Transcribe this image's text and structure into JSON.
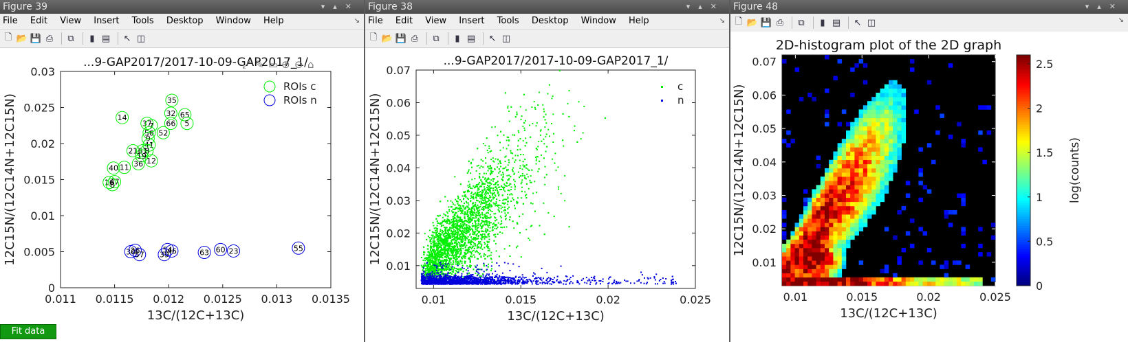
{
  "windows": [
    {
      "title": "Figure 39",
      "menu": [
        "File",
        "Edit",
        "View",
        "Insert",
        "Tools",
        "Desktop",
        "Window",
        "Help"
      ],
      "plot_title": "...9-GAP2017/2017-10-09-GAP2017_1/",
      "fit_button": "Fit data"
    },
    {
      "title": "Figure 38",
      "menu": [
        "File",
        "Edit",
        "View",
        "Insert",
        "Tools",
        "Desktop",
        "Window",
        "Help"
      ],
      "plot_title": "...9-GAP2017/2017-10-09-GAP2017_1/"
    },
    {
      "title": "Figure 48",
      "plot_title": "2D-histogram plot of the 2D graph"
    }
  ],
  "colors": {
    "green": "#00ee00",
    "blue": "#0000dd"
  },
  "chart_data": [
    {
      "type": "scatter",
      "title": "...9-GAP2017/2017-10-09-GAP2017_1/",
      "xlabel": "13C/(12C+13C)",
      "ylabel": "12C15N/(12C14N+12C15N)",
      "xlim": [
        0.011,
        0.0135
      ],
      "ylim": [
        0,
        0.03
      ],
      "xticks": [
        "0.011",
        "0.0115",
        "0.012",
        "0.0125",
        "0.013",
        "0.0135"
      ],
      "yticks": [
        "0",
        "0.005",
        "0.01",
        "0.015",
        "0.02",
        "0.025",
        "0.03"
      ],
      "legend": [
        "ROIs c",
        "ROIs n"
      ],
      "series": [
        {
          "name": "ROIs c",
          "points": [
            {
              "x": 0.01203,
              "y": 0.026,
              "label": "35"
            },
            {
              "x": 0.01202,
              "y": 0.0242,
              "label": "32"
            },
            {
              "x": 0.01215,
              "y": 0.024,
              "label": "65"
            },
            {
              "x": 0.01157,
              "y": 0.0236,
              "label": "14"
            },
            {
              "x": 0.0118,
              "y": 0.0228,
              "label": "37"
            },
            {
              "x": 0.01202,
              "y": 0.0228,
              "label": "66"
            },
            {
              "x": 0.01217,
              "y": 0.0228,
              "label": "5"
            },
            {
              "x": 0.01184,
              "y": 0.0225,
              "label": "7"
            },
            {
              "x": 0.01182,
              "y": 0.0215,
              "label": "56"
            },
            {
              "x": 0.01195,
              "y": 0.0215,
              "label": "52"
            },
            {
              "x": 0.01181,
              "y": 0.0207,
              "label": "9"
            },
            {
              "x": 0.01182,
              "y": 0.0198,
              "label": "41"
            },
            {
              "x": 0.01167,
              "y": 0.019,
              "label": "21"
            },
            {
              "x": 0.01176,
              "y": 0.019,
              "label": "61"
            },
            {
              "x": 0.0118,
              "y": 0.019,
              "label": "8"
            },
            {
              "x": 0.01175,
              "y": 0.0183,
              "label": "19"
            },
            {
              "x": 0.01184,
              "y": 0.0176,
              "label": "12"
            },
            {
              "x": 0.01172,
              "y": 0.0172,
              "label": "36"
            },
            {
              "x": 0.01149,
              "y": 0.0166,
              "label": "40"
            },
            {
              "x": 0.01159,
              "y": 0.0167,
              "label": "11"
            },
            {
              "x": 0.0115,
              "y": 0.0147,
              "label": "47"
            },
            {
              "x": 0.01145,
              "y": 0.0146,
              "label": "16"
            },
            {
              "x": 0.01148,
              "y": 0.0143,
              "label": "8"
            }
          ]
        },
        {
          "name": "ROIs n",
          "points": [
            {
              "x": 0.01165,
              "y": 0.005,
              "label": "30"
            },
            {
              "x": 0.01169,
              "y": 0.0052,
              "label": "26"
            },
            {
              "x": 0.01173,
              "y": 0.0046,
              "label": "57"
            },
            {
              "x": 0.01196,
              "y": 0.0046,
              "label": "39"
            },
            {
              "x": 0.01199,
              "y": 0.0053,
              "label": "54"
            },
            {
              "x": 0.01203,
              "y": 0.0051,
              "label": "46"
            },
            {
              "x": 0.01233,
              "y": 0.0049,
              "label": "63"
            },
            {
              "x": 0.01248,
              "y": 0.0053,
              "label": "60"
            },
            {
              "x": 0.0126,
              "y": 0.0051,
              "label": "23"
            },
            {
              "x": 0.0132,
              "y": 0.0055,
              "label": "55"
            }
          ]
        }
      ]
    },
    {
      "type": "scatter",
      "title": "...9-GAP2017/2017-10-09-GAP2017_1/",
      "xlabel": "13C/(12C+13C)",
      "ylabel": "12C15N/(12C14N+12C15N)",
      "xlim": [
        0.009,
        0.025
      ],
      "ylim": [
        0.003,
        0.07
      ],
      "xticks": [
        "0.01",
        "0.015",
        "0.02",
        "0.025"
      ],
      "yticks": [
        "0.01",
        "0.02",
        "0.03",
        "0.04",
        "0.05",
        "0.06",
        "0.07"
      ],
      "legend": [
        "c",
        "n"
      ],
      "series": [
        {
          "name": "c",
          "description_only": false,
          "distribution": {
            "x_center": 0.0125,
            "x_spread": 0.0025,
            "y_slope": 6.0,
            "y_intercept": -0.062,
            "y_spread": 0.008,
            "n": 3500
          }
        },
        {
          "name": "n",
          "distribution": {
            "x_center": 0.012,
            "x_spread": 0.003,
            "y_center": 0.0045,
            "y_spread": 0.0012,
            "n": 1800
          }
        }
      ]
    },
    {
      "type": "heatmap",
      "title": "2D-histogram plot of the 2D graph",
      "xlabel": "13C/(12C+13C)",
      "ylabel": "12C15N/(12C14N+12C15N)",
      "colorbar_label": "log(counts)",
      "xlim": [
        0.009,
        0.025
      ],
      "ylim": [
        0.003,
        0.072
      ],
      "xticks": [
        "0.01",
        "0.015",
        "0.02",
        "0.025"
      ],
      "yticks": [
        "0.01",
        "0.02",
        "0.03",
        "0.04",
        "0.05",
        "0.06",
        "0.07"
      ],
      "colorbar_ticks": [
        "0",
        "0.5",
        "1",
        "1.5",
        "2",
        "2.5"
      ],
      "clim": [
        0,
        2.6
      ]
    }
  ]
}
